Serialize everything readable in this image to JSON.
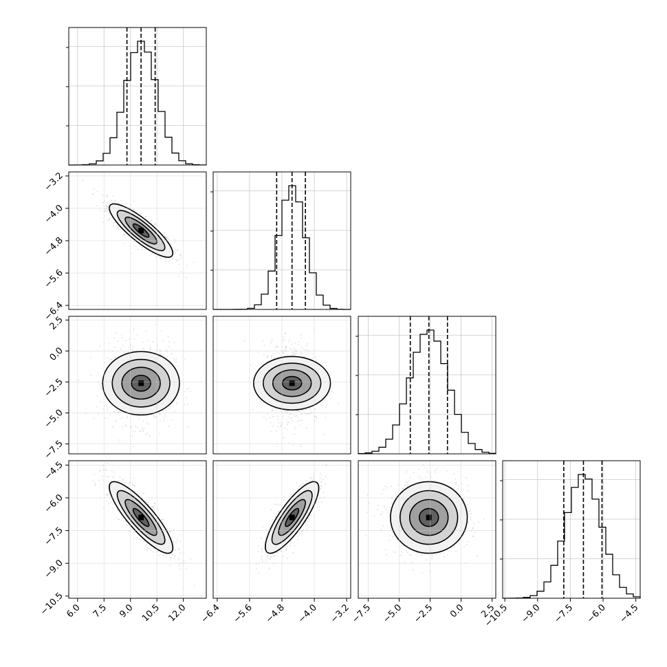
{
  "chart_data": {
    "type": "corner",
    "n_params": 4,
    "params": [
      {
        "mean": 9.6,
        "std": 0.9,
        "range": [
          5.5,
          13.3
        ],
        "quantiles": [
          8.8,
          9.6,
          10.4
        ],
        "ticks": [
          6.0,
          7.5,
          9.0,
          10.5,
          12.0
        ],
        "tick_labels": [
          "6.0",
          "7.5",
          "9.0",
          "10.5",
          "12.0"
        ]
      },
      {
        "mean": -4.55,
        "std": 0.33,
        "range": [
          -6.5,
          -3.1
        ],
        "quantiles": [
          -4.93,
          -4.55,
          -4.22
        ],
        "ticks": [
          -6.4,
          -5.6,
          -4.8,
          -4.0,
          -3.2
        ],
        "tick_labels": [
          "−6.4",
          "−5.6",
          "−4.8",
          "−4.0",
          "−3.2"
        ]
      },
      {
        "mean": -2.6,
        "std": 1.55,
        "range": [
          -8.3,
          2.8
        ],
        "quantiles": [
          -4.1,
          -2.6,
          -1.1
        ],
        "ticks": [
          -7.5,
          -5.0,
          -2.5,
          0.0,
          2.5
        ],
        "tick_labels": [
          "−7.5",
          "−5.0",
          "−2.5",
          "0.0",
          "2.5"
        ]
      },
      {
        "mean": -6.9,
        "std": 0.82,
        "range": [
          -10.6,
          -4.3
        ],
        "quantiles": [
          -7.8,
          -6.9,
          -6.05
        ],
        "ticks": [
          -10.5,
          -9.0,
          -7.5,
          -6.0,
          -4.5
        ],
        "tick_labels": [
          "−10.5",
          "−9.0",
          "−7.5",
          "−6.0",
          "−4.5"
        ]
      }
    ],
    "correlations": [
      [
        1.0,
        -0.85,
        0.0,
        -0.85
      ],
      [
        -0.85,
        1.0,
        0.0,
        0.82
      ],
      [
        0.0,
        0.0,
        1.0,
        0.0
      ],
      [
        -0.85,
        0.82,
        0.0,
        1.0
      ]
    ],
    "hist_bins": 20,
    "contour_levels_sigma": [
      0.5,
      1.0,
      1.5,
      2.0
    ],
    "grid": true,
    "quantile_lines": "dashed"
  }
}
